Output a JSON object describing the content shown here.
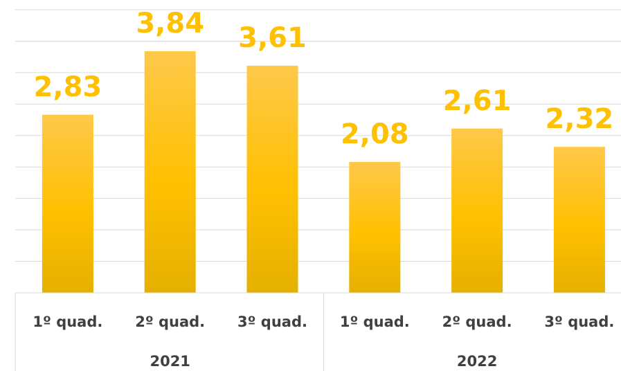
{
  "chart_data": {
    "type": "bar",
    "categories": [
      "1º quad.",
      "2º quad.",
      "3º quad.",
      "1º quad.",
      "2º quad.",
      "3º quad."
    ],
    "groups": [
      "2021",
      "2022"
    ],
    "values": [
      2.83,
      3.84,
      3.61,
      2.08,
      2.61,
      2.32
    ],
    "value_labels": [
      "2,83",
      "3,84",
      "3,61",
      "2,08",
      "2,61",
      "2,32"
    ],
    "color": "#FFC000",
    "ylim": [
      0,
      4.5
    ],
    "yticks": [
      0,
      0.5,
      1,
      1.5,
      2,
      2.5,
      3,
      3.5,
      4,
      4.5
    ],
    "grid": true
  }
}
